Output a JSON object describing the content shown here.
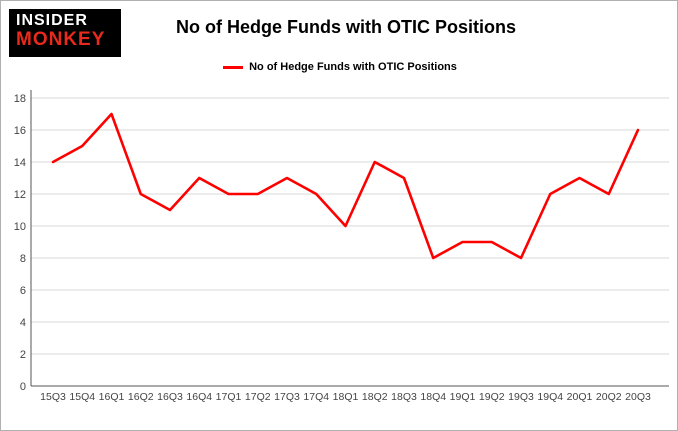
{
  "branding": {
    "logo_line1": "INSIDER",
    "logo_line2": "MONKEY"
  },
  "header": {
    "title": "No of Hedge Funds with OTIC Positions"
  },
  "legend": {
    "label": "No of Hedge Funds with OTIC Positions",
    "color": "#ff0000"
  },
  "chart_data": {
    "type": "line",
    "title": "No of Hedge Funds with OTIC Positions",
    "categories": [
      "15Q3",
      "15Q4",
      "16Q1",
      "16Q2",
      "16Q3",
      "16Q4",
      "17Q1",
      "17Q2",
      "17Q3",
      "17Q4",
      "18Q1",
      "18Q2",
      "18Q3",
      "18Q4",
      "19Q1",
      "19Q2",
      "19Q3",
      "19Q4",
      "20Q1",
      "20Q2",
      "20Q3"
    ],
    "values": [
      14,
      15,
      17,
      12,
      11,
      13,
      12,
      12,
      13,
      12,
      10,
      14,
      13,
      8,
      9,
      9,
      8,
      12,
      13,
      12,
      16
    ],
    "xlabel": "",
    "ylabel": "",
    "ylim": [
      0,
      18
    ],
    "ytick_step": 2,
    "grid": true,
    "line_color": "#ff0000",
    "grid_color": "#d9d9d9",
    "axis_color": "#555555",
    "tick_label_color": "#444444",
    "legend_position": "top"
  }
}
